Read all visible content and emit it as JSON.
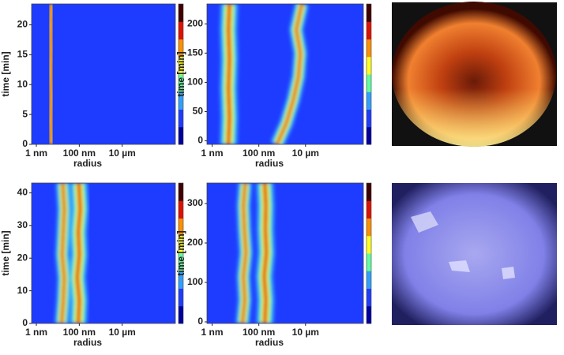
{
  "chart_data": [
    {
      "type": "heatmap",
      "xlabel": "radius",
      "ylabel": "time [min]",
      "xscale": "log",
      "xlim": [
        0.6,
        3000000
      ],
      "xticks": [
        {
          "value": 1,
          "label": "1 nm"
        },
        {
          "value": 100,
          "label": "100 nm"
        },
        {
          "value": 10000,
          "label": "10 µm"
        }
      ],
      "ylim": [
        0,
        23.5
      ],
      "yticks": [
        0,
        5,
        10,
        15,
        20
      ],
      "colorscale": [
        "#0000a0",
        "#1e3cff",
        "#30a0ff",
        "#60ffa0",
        "#ffff20",
        "#ff9000",
        "#e01000",
        "#400000"
      ],
      "series": [
        {
          "x": [
            4.5,
            5,
            4.6,
            5.2,
            4.8,
            5,
            4.6
          ],
          "values": [
            0,
            4,
            8,
            12,
            16,
            20,
            23.5
          ]
        }
      ]
    },
    {
      "type": "heatmap",
      "xlabel": "radius",
      "ylabel": "time [min]",
      "xscale": "log",
      "xlim": [
        0.6,
        3000000
      ],
      "xticks": [
        {
          "value": 1,
          "label": "1 nm"
        },
        {
          "value": 100,
          "label": "100 nm"
        },
        {
          "value": 10000,
          "label": "10 µm"
        }
      ],
      "ylim": [
        -6,
        234
      ],
      "yticks": [
        0,
        50,
        100,
        150,
        200
      ],
      "colorscale": [
        "#0000a0",
        "#1e3cff",
        "#30a0ff",
        "#60ffa0",
        "#ffff20",
        "#ff9000",
        "#e01000",
        "#400000"
      ],
      "series": [
        {
          "x": [
            5,
            5.5,
            5,
            5.5,
            5,
            5.5
          ],
          "values": [
            -6,
            40,
            90,
            140,
            190,
            234
          ]
        },
        {
          "x": [
            600,
            1500,
            3000,
            5000,
            6000,
            4000,
            7000
          ],
          "values": [
            -6,
            30,
            70,
            110,
            150,
            190,
            234
          ]
        }
      ]
    },
    {
      "type": "heatmap",
      "xlabel": "radius",
      "ylabel": "time [min]",
      "xscale": "log",
      "xlim": [
        0.6,
        3000000
      ],
      "xticks": [
        {
          "value": 1,
          "label": "1 nm"
        },
        {
          "value": 100,
          "label": "100 nm"
        },
        {
          "value": 10000,
          "label": "10 µm"
        }
      ],
      "ylim": [
        0,
        43
      ],
      "yticks": [
        0,
        10,
        20,
        30,
        40
      ],
      "colorscale": [
        "#0000a0",
        "#1e3cff",
        "#30a0ff",
        "#60ffa0",
        "#ffff20",
        "#ff9000",
        "#e01000",
        "#400000"
      ],
      "series": [
        {
          "x": [
            90,
            100,
            80,
            100,
            90,
            110,
            95
          ],
          "values": [
            0,
            7,
            14,
            21,
            28,
            35,
            43
          ]
        },
        {
          "x": [
            15,
            18,
            20,
            16,
            18,
            20,
            17
          ],
          "values": [
            0,
            7,
            14,
            21,
            28,
            35,
            43
          ]
        }
      ]
    },
    {
      "type": "heatmap",
      "xlabel": "radius",
      "ylabel": "time [min]",
      "xscale": "log",
      "xlim": [
        0.6,
        3000000
      ],
      "xticks": [
        {
          "value": 1,
          "label": "1 nm"
        },
        {
          "value": 100,
          "label": "100 nm"
        },
        {
          "value": 10000,
          "label": "10 µm"
        }
      ],
      "ylim": [
        -4,
        352
      ],
      "yticks": [
        0,
        100,
        200,
        300
      ],
      "colorscale": [
        "#0000a0",
        "#1e3cff",
        "#30a0ff",
        "#60ffa0",
        "#ffff20",
        "#ff9000",
        "#e01000",
        "#400000"
      ],
      "series": [
        {
          "x": [
            180,
            200,
            170,
            210,
            190,
            200,
            180
          ],
          "values": [
            -4,
            55,
            115,
            175,
            235,
            295,
            352
          ]
        },
        {
          "x": [
            20,
            25,
            22,
            28,
            24,
            22,
            26
          ],
          "values": [
            -4,
            55,
            115,
            175,
            235,
            295,
            352
          ]
        }
      ]
    }
  ]
}
